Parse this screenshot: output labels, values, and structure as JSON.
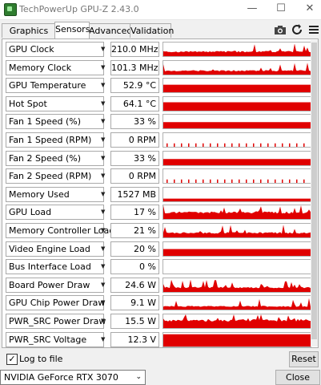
{
  "window": {
    "title": "TechPowerUp GPU-Z 2.43.0"
  },
  "tabs": [
    {
      "label": "Graphics Card",
      "active": false
    },
    {
      "label": "Sensors",
      "active": true
    },
    {
      "label": "Advanced",
      "active": false
    },
    {
      "label": "Validation",
      "active": false
    }
  ],
  "toolbar_icons": [
    "camera-icon",
    "refresh-icon",
    "menu-icon"
  ],
  "graph_color": "#e00000",
  "sensors": [
    {
      "name": "GPU Clock",
      "value": "210.0 MHz",
      "level": 0.35,
      "pattern": "spiky"
    },
    {
      "name": "Memory Clock",
      "value": "101.3 MHz",
      "level": 0.3,
      "pattern": "spiky"
    },
    {
      "name": "GPU Temperature",
      "value": "52.9 °C",
      "level": 0.55,
      "pattern": "flat"
    },
    {
      "name": "Hot Spot",
      "value": "64.1 °C",
      "level": 0.62,
      "pattern": "flat"
    },
    {
      "name": "Fan 1 Speed (%)",
      "value": "33 %",
      "level": 0.45,
      "pattern": "flat"
    },
    {
      "name": "Fan 1 Speed (RPM)",
      "value": "0 RPM",
      "level": 0.25,
      "pattern": "ticks"
    },
    {
      "name": "Fan 2 Speed (%)",
      "value": "33 %",
      "level": 0.45,
      "pattern": "flat"
    },
    {
      "name": "Fan 2 Speed (RPM)",
      "value": "0 RPM",
      "level": 0.25,
      "pattern": "ticks"
    },
    {
      "name": "Memory Used",
      "value": "1527 MB",
      "level": 0.2,
      "pattern": "flat"
    },
    {
      "name": "GPU Load",
      "value": "17 %",
      "level": 0.5,
      "pattern": "spiky"
    },
    {
      "name": "Memory Controller Load",
      "value": "21 %",
      "level": 0.35,
      "pattern": "spiky"
    },
    {
      "name": "Video Engine Load",
      "value": "20 %",
      "level": 0.5,
      "pattern": "flat"
    },
    {
      "name": "Bus Interface Load",
      "value": "0 %",
      "level": 0.0,
      "pattern": "none"
    },
    {
      "name": "Board Power Draw",
      "value": "24.6 W",
      "level": 0.35,
      "pattern": "spiky"
    },
    {
      "name": "GPU Chip Power Draw",
      "value": "9.1 W",
      "level": 0.25,
      "pattern": "spiky"
    },
    {
      "name": "PWR_SRC Power Draw",
      "value": "15.5 W",
      "level": 0.6,
      "pattern": "spiky"
    },
    {
      "name": "PWR_SRC Voltage",
      "value": "12.3 V",
      "level": 0.9,
      "pattern": "flat"
    }
  ],
  "log_to_file": {
    "label": "Log to file",
    "checked": true
  },
  "reset_label": "Reset",
  "gpu_select": {
    "value": "NVIDIA GeForce RTX 3070"
  },
  "close_label": "Close"
}
